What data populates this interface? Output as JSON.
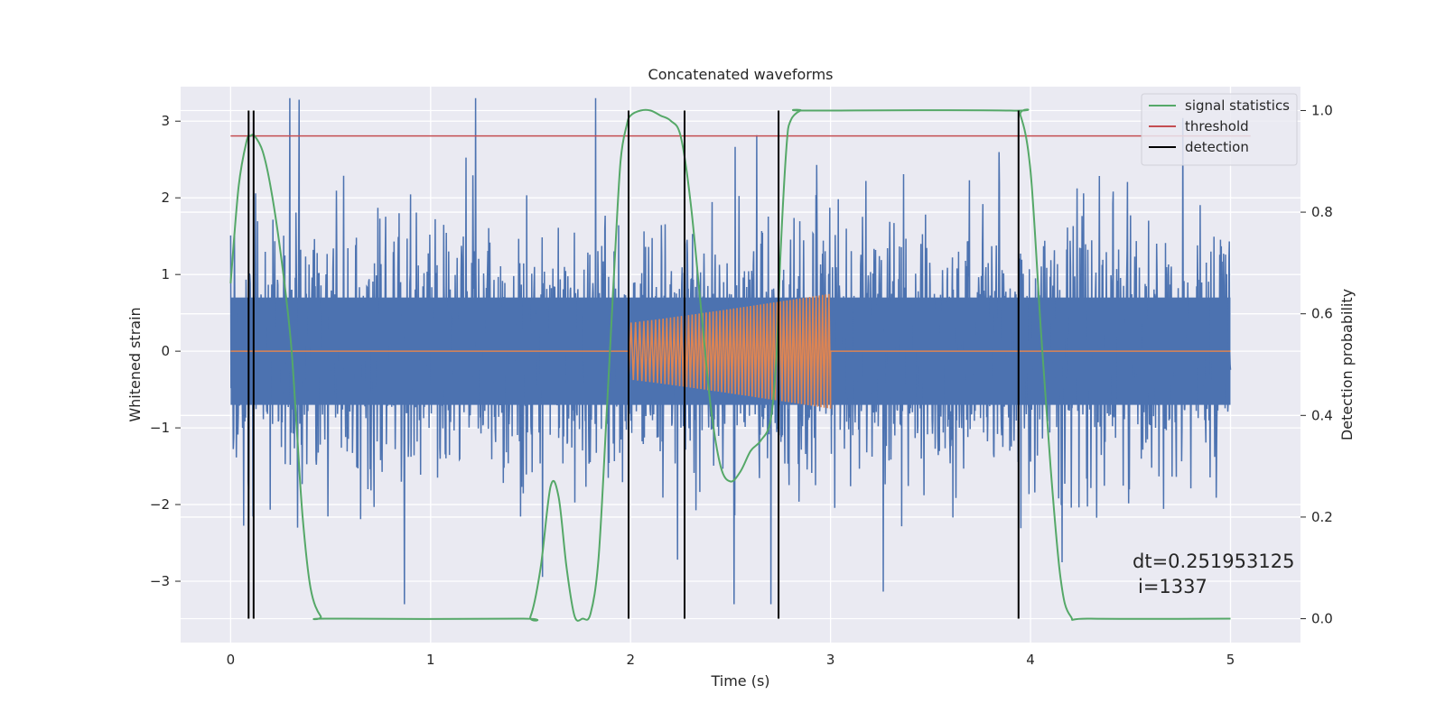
{
  "chart_data": {
    "type": "line",
    "title": "Concatenated waveforms",
    "xlabel": "Time (s)",
    "ylabel": "Whitened strain",
    "y2label": "Detection probability",
    "xlim": [
      -0.25,
      5.35
    ],
    "ylim": [
      -3.8,
      3.45
    ],
    "y2lim": [
      -0.047,
      1.047
    ],
    "x_ticks": [
      0,
      1,
      2,
      3,
      4,
      5
    ],
    "y_ticks": [
      -3,
      -2,
      -1,
      0,
      1,
      2,
      3
    ],
    "y_tick_labels": [
      "−3",
      "−2",
      "−1",
      "0",
      "1",
      "2",
      "3"
    ],
    "y2_ticks": [
      0.0,
      0.2,
      0.4,
      0.6,
      0.8,
      1.0
    ],
    "y2_tick_labels": [
      "0.0",
      "0.2",
      "0.4",
      "0.6",
      "0.8",
      "1.0"
    ],
    "grid": true,
    "legend_position": "top-right",
    "colors": {
      "strain": "#4c72b0",
      "injection": "#dd8452",
      "signal_statistics": "#55a868",
      "threshold": "#c44e52",
      "detection": "#000000",
      "axes_bg": "#eaeaf2",
      "grid": "#ffffff"
    },
    "series": [
      {
        "name": "",
        "role": "strain",
        "axis": "left",
        "x_range": [
          0,
          5
        ],
        "envelope": {
          "core": [
            -0.7,
            0.7
          ],
          "max": [
            -3.3,
            3.3
          ]
        }
      },
      {
        "name": "",
        "role": "injection",
        "axis": "left",
        "x_range": [
          0,
          5
        ],
        "chirp": {
          "start": 1.99,
          "end": 3.0,
          "amp_start": 0.37,
          "amp_end": 0.75
        }
      },
      {
        "name": "signal statistics",
        "role": "signal_statistics",
        "axis": "right",
        "x": [
          0.0,
          0.04,
          0.08,
          0.1,
          0.12,
          0.16,
          0.2,
          0.25,
          0.3,
          0.33,
          0.36,
          0.4,
          0.45,
          0.5,
          1.45,
          1.5,
          1.55,
          1.6,
          1.64,
          1.68,
          1.72,
          1.76,
          1.8,
          1.84,
          1.88,
          1.92,
          1.95,
          1.98,
          2.0,
          2.05,
          2.1,
          2.15,
          2.2,
          2.25,
          2.3,
          2.35,
          2.4,
          2.45,
          2.5,
          2.55,
          2.6,
          2.65,
          2.7,
          2.73,
          2.75,
          2.78,
          2.8,
          2.85,
          2.9,
          3.9,
          3.95,
          4.0,
          4.05,
          4.1,
          4.15,
          4.2,
          4.3,
          5.0
        ],
        "y": [
          0.66,
          0.85,
          0.94,
          0.95,
          0.95,
          0.92,
          0.85,
          0.72,
          0.55,
          0.38,
          0.2,
          0.06,
          0.005,
          0.0,
          0.0,
          0.005,
          0.1,
          0.26,
          0.24,
          0.1,
          0.005,
          0.0,
          0.01,
          0.12,
          0.4,
          0.7,
          0.9,
          0.97,
          0.99,
          1.0,
          1.0,
          0.99,
          0.98,
          0.95,
          0.82,
          0.62,
          0.42,
          0.3,
          0.27,
          0.29,
          0.33,
          0.35,
          0.39,
          0.52,
          0.72,
          0.93,
          0.98,
          1.0,
          1.0,
          1.0,
          0.99,
          0.88,
          0.58,
          0.3,
          0.08,
          0.005,
          0.0,
          0.0
        ]
      },
      {
        "name": "threshold",
        "role": "threshold",
        "axis": "right",
        "x": [
          0,
          5.1
        ],
        "y": [
          0.95,
          0.95
        ]
      },
      {
        "name": "detection",
        "role": "detection",
        "axis": "right",
        "x_lines": [
          0.09,
          0.115,
          1.99,
          2.27,
          2.74,
          3.94
        ],
        "y_range": [
          0.0,
          1.0
        ]
      }
    ],
    "annotations": [
      "dt=0.251953125",
      "i=1337"
    ]
  }
}
